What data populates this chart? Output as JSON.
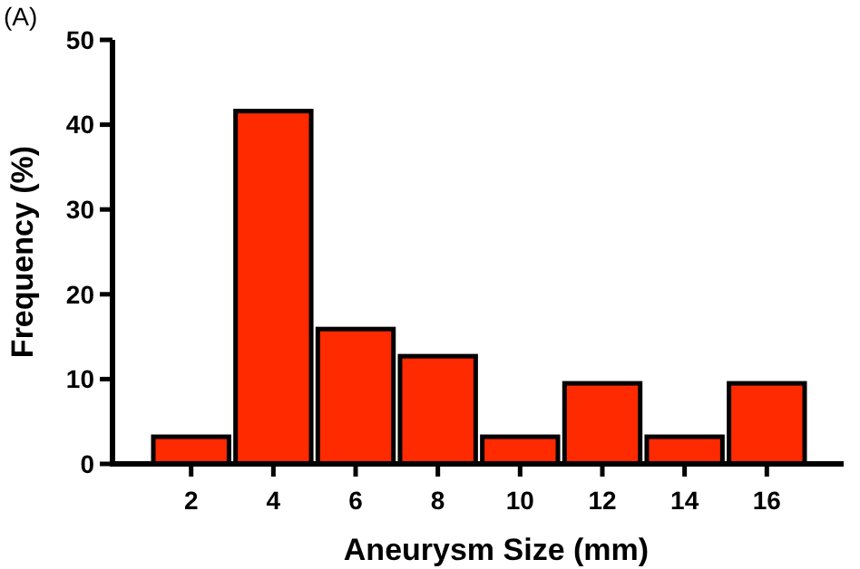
{
  "chart_data": {
    "type": "bar",
    "annotations": [
      "(A)"
    ],
    "xlabel": "Aneurysm Size (mm)",
    "ylabel": "Frequency (%)",
    "categories": [
      "2",
      "4",
      "6",
      "8",
      "10",
      "12",
      "14",
      "16"
    ],
    "values": [
      3.2,
      41.6,
      15.9,
      12.7,
      3.2,
      9.5,
      3.2,
      9.5
    ],
    "color": "#ff2a00",
    "ylim": [
      0,
      50
    ],
    "yticks": [
      0,
      10,
      20,
      30,
      40,
      50
    ],
    "grid": false
  }
}
